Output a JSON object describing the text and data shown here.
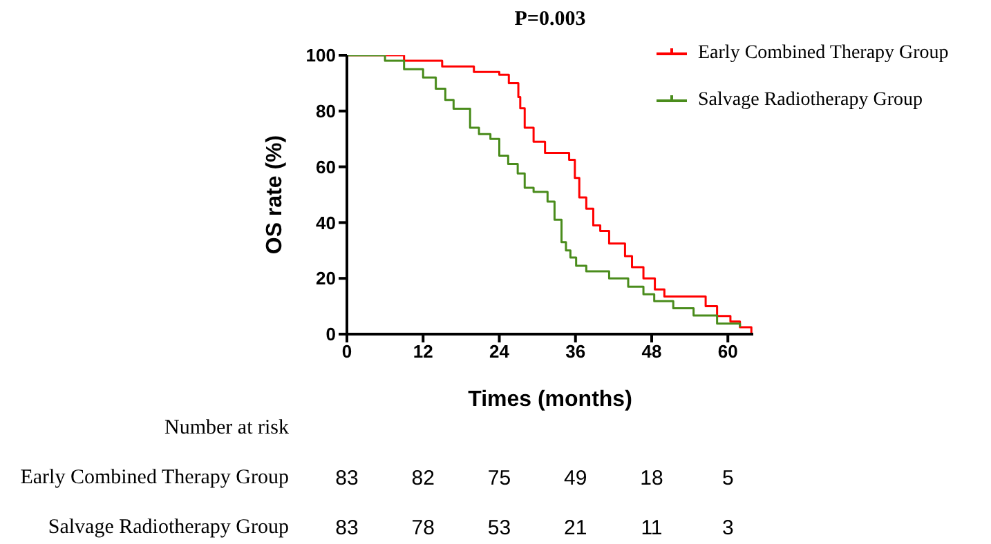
{
  "chart_data": {
    "type": "step",
    "title": "P=0.003",
    "xlabel": "Times (months)",
    "ylabel": "OS rate (%)",
    "series": [
      {
        "name": "Early Combined Therapy Group",
        "color": "#ff0000",
        "x": [
          0,
          9,
          15,
          20,
          24,
          25.5,
          27,
          27.3,
          28,
          29.4,
          31.2,
          35,
          35.9,
          36.6,
          37.7,
          38.8,
          39.9,
          41.3,
          43.8,
          44.9,
          46.7,
          48.5,
          50,
          56.5,
          58.3,
          60.4,
          61.9,
          63.7
        ],
        "values": [
          100,
          98,
          96,
          94,
          93,
          90,
          85,
          81,
          74,
          69,
          65,
          62.5,
          56,
          49,
          45,
          39,
          37,
          32.5,
          28,
          24,
          20,
          16,
          13.5,
          10,
          6.5,
          4.5,
          2.5,
          0
        ]
      },
      {
        "name": "Salvage Radiotherapy Group",
        "color": "#4a8c1c",
        "x": [
          0,
          6,
          9,
          12,
          14,
          15.5,
          16.8,
          19.4,
          20.8,
          22.6,
          24,
          25.4,
          26.9,
          28,
          29.4,
          31.6,
          32.7,
          33.8,
          34.5,
          35.2,
          36.1,
          37.7,
          41.3,
          44.3,
          46.7,
          48.4,
          51.4,
          54.6,
          58.3,
          61.9
        ],
        "values": [
          100,
          98,
          95,
          92,
          88,
          84,
          80.8,
          74,
          71.7,
          70,
          64,
          61,
          57.6,
          52.5,
          51,
          47.5,
          41,
          33,
          30,
          27.5,
          24.5,
          22.5,
          20,
          17,
          14.3,
          11.8,
          9.3,
          6.7,
          3.8,
          2.5
        ]
      }
    ],
    "xlim": [
      0,
      64
    ],
    "xticks": [
      0,
      12,
      24,
      36,
      48,
      60
    ],
    "ylim": [
      0,
      100
    ],
    "yticks": [
      0,
      20,
      40,
      60,
      80,
      100
    ],
    "grid": false,
    "legend": "top right",
    "marker": "none",
    "line_style": "solid",
    "annotations": [
      "Number at risk",
      "Early Combined Therapy Group",
      "83",
      "82",
      "75",
      "49",
      "18",
      "5",
      "Salvage Radiotherapy Group",
      "83",
      "78",
      "53",
      "21",
      "11",
      "3"
    ]
  }
}
